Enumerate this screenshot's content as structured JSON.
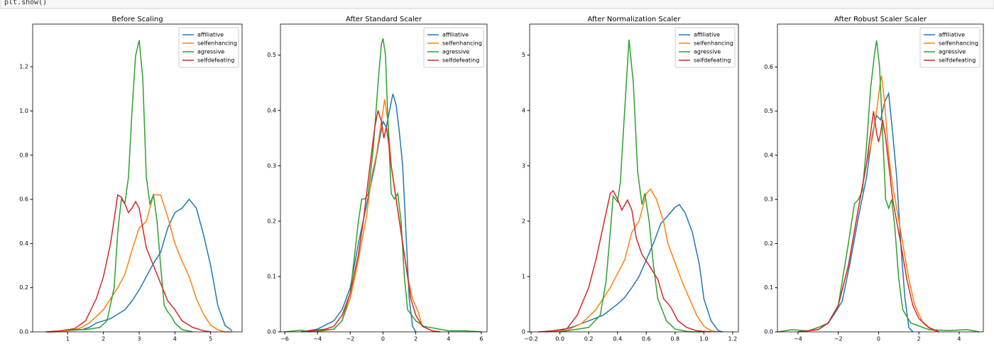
{
  "code": "plt.show()",
  "chart_data": [
    {
      "type": "line",
      "title": "Before Scaling",
      "legend": "upper right",
      "xlim": [
        0.02,
        5.88
      ],
      "ylim": [
        0,
        1.393
      ],
      "xticks": [
        1,
        2,
        3,
        4,
        5
      ],
      "yticks": [
        {
          "value": 0,
          "label": "0.0"
        },
        0.2,
        0.4,
        0.6,
        0.8,
        {
          "value": 1,
          "label": "1.0"
        },
        1.2
      ],
      "series": [
        {
          "name": "affiliative",
          "color": "#1f77b4",
          "x": [
            0.4,
            0.6,
            0.8,
            1.0,
            1.2,
            1.4,
            1.6,
            1.8,
            2.0,
            2.2,
            2.4,
            2.6,
            2.8,
            3.0,
            3.2,
            3.4,
            3.6,
            3.8,
            4.0,
            4.2,
            4.4,
            4.6,
            4.8,
            5.0,
            5.2,
            5.4,
            5.6
          ],
          "values": [
            0,
            0,
            0.002,
            0.005,
            0.008,
            0.01,
            0.02,
            0.04,
            0.05,
            0.06,
            0.08,
            0.1,
            0.14,
            0.19,
            0.25,
            0.31,
            0.36,
            0.47,
            0.54,
            0.56,
            0.6,
            0.56,
            0.44,
            0.3,
            0.12,
            0.03,
            0.005
          ]
        },
        {
          "name": "selfenhancing",
          "color": "#ff7f0e",
          "x": [
            0.4,
            0.6,
            0.8,
            1.0,
            1.2,
            1.4,
            1.6,
            1.8,
            2.0,
            2.2,
            2.4,
            2.6,
            2.8,
            3.0,
            3.2,
            3.4,
            3.6,
            3.8,
            4.0,
            4.2,
            4.4,
            4.6,
            4.8,
            5.0,
            5.2,
            5.4,
            5.6
          ],
          "values": [
            0,
            0,
            0.002,
            0.005,
            0.01,
            0.02,
            0.04,
            0.07,
            0.1,
            0.15,
            0.2,
            0.26,
            0.37,
            0.47,
            0.5,
            0.62,
            0.62,
            0.52,
            0.4,
            0.32,
            0.25,
            0.15,
            0.08,
            0.03,
            0.01,
            0,
            0
          ]
        },
        {
          "name": "agressive",
          "color": "#2ca02c",
          "x": [
            1.0,
            1.5,
            1.9,
            2.1,
            2.3,
            2.4,
            2.5,
            2.6,
            2.7,
            2.8,
            2.9,
            3.0,
            3.1,
            3.2,
            3.3,
            3.4,
            3.5,
            3.6,
            3.7,
            3.8,
            3.9,
            4.0,
            4.2,
            4.5
          ],
          "values": [
            0.01,
            0.01,
            0.02,
            0.05,
            0.2,
            0.45,
            0.6,
            0.58,
            0.7,
            1.0,
            1.25,
            1.32,
            1.15,
            0.7,
            0.58,
            0.62,
            0.5,
            0.3,
            0.12,
            0.09,
            0.07,
            0.04,
            0.01,
            0
          ]
        },
        {
          "name": "selfdefeating",
          "color": "#d62728",
          "x": [
            0.4,
            0.8,
            1.2,
            1.5,
            1.8,
            2.0,
            2.2,
            2.4,
            2.5,
            2.6,
            2.7,
            2.8,
            2.9,
            3.0,
            3.1,
            3.2,
            3.4,
            3.6,
            3.8,
            4.0,
            4.2,
            4.5,
            4.8,
            5.0
          ],
          "values": [
            0,
            0.005,
            0.015,
            0.05,
            0.15,
            0.25,
            0.4,
            0.62,
            0.61,
            0.58,
            0.54,
            0.56,
            0.59,
            0.56,
            0.47,
            0.38,
            0.3,
            0.22,
            0.14,
            0.1,
            0.05,
            0.02,
            0.005,
            0
          ]
        }
      ]
    },
    {
      "type": "line",
      "title": "After Standard Scaler",
      "legend": "upper right",
      "xlim": [
        -6.26,
        6.35
      ],
      "ylim": [
        0,
        0.556
      ],
      "xticks": [
        {
          "value": -6,
          "label": "−6"
        },
        {
          "value": -4,
          "label": "−4"
        },
        {
          "value": -2,
          "label": "−2"
        },
        0,
        2,
        4,
        6
      ],
      "yticks": [
        {
          "value": 0,
          "label": "0.0"
        },
        0.1,
        0.2,
        0.3,
        0.4,
        0.5
      ],
      "series": [
        {
          "name": "affiliative",
          "color": "#1f77b4",
          "x": [
            -5,
            -4,
            -3,
            -2.5,
            -2,
            -1.5,
            -1,
            -0.5,
            -0.2,
            0,
            0.2,
            0.4,
            0.6,
            0.8,
            1.0,
            1.2,
            1.4,
            1.6,
            1.8,
            2.0
          ],
          "values": [
            0,
            0.005,
            0.02,
            0.04,
            0.08,
            0.16,
            0.23,
            0.3,
            0.35,
            0.38,
            0.37,
            0.4,
            0.43,
            0.41,
            0.36,
            0.3,
            0.18,
            0.06,
            0.01,
            0
          ]
        },
        {
          "name": "selfenhancing",
          "color": "#ff7f0e",
          "x": [
            -4,
            -3,
            -2.5,
            -2,
            -1.5,
            -1,
            -0.7,
            -0.4,
            -0.2,
            0,
            0.1,
            0.3,
            0.5,
            0.7,
            0.9,
            1.2,
            1.5,
            1.8,
            2.1,
            2.4,
            3,
            3.5
          ],
          "values": [
            0,
            0.005,
            0.02,
            0.06,
            0.13,
            0.21,
            0.28,
            0.32,
            0.36,
            0.4,
            0.42,
            0.38,
            0.3,
            0.26,
            0.22,
            0.16,
            0.1,
            0.06,
            0.04,
            0.01,
            0.002,
            0
          ]
        },
        {
          "name": "agressive",
          "color": "#2ca02c",
          "x": [
            -6,
            -5,
            -4.5,
            -3,
            -2.5,
            -2,
            -1.5,
            -1.3,
            -1.1,
            -0.9,
            -0.6,
            -0.3,
            -0.1,
            0,
            0.15,
            0.3,
            0.5,
            0.7,
            0.9,
            1.1,
            1.3,
            1.5,
            2.0,
            2.5,
            4,
            5,
            6
          ],
          "values": [
            0,
            0.003,
            0,
            0.005,
            0.02,
            0.07,
            0.2,
            0.24,
            0.24,
            0.25,
            0.33,
            0.45,
            0.52,
            0.53,
            0.5,
            0.38,
            0.25,
            0.24,
            0.25,
            0.2,
            0.1,
            0.04,
            0.02,
            0.01,
            0.002,
            0.002,
            0
          ]
        },
        {
          "name": "selfdefeating",
          "color": "#d62728",
          "x": [
            -5,
            -3.5,
            -3,
            -2.5,
            -2,
            -1.5,
            -1.2,
            -0.8,
            -0.5,
            -0.3,
            -0.1,
            0.05,
            0.2,
            0.35,
            0.5,
            0.7,
            0.9,
            1.1,
            1.4,
            1.7,
            2.0,
            2.4,
            3,
            3.5
          ],
          "values": [
            0,
            0.005,
            0.01,
            0.03,
            0.07,
            0.14,
            0.2,
            0.3,
            0.37,
            0.4,
            0.38,
            0.35,
            0.37,
            0.34,
            0.3,
            0.26,
            0.22,
            0.18,
            0.12,
            0.06,
            0.03,
            0.01,
            0.002,
            0
          ]
        }
      ]
    },
    {
      "type": "line",
      "title": "After Normalization Scaler",
      "legend": "upper right",
      "xlim": [
        -0.21,
        1.24
      ],
      "ylim": [
        0,
        5.56
      ],
      "xticks": [
        {
          "value": -0.2,
          "label": "−0.2"
        },
        {
          "value": 0,
          "label": "0.0"
        },
        0.2,
        0.4,
        0.6,
        0.8,
        {
          "value": 1,
          "label": "1.0"
        },
        1.2
      ],
      "yticks": [
        0,
        1,
        2,
        3,
        4,
        5
      ],
      "series": [
        {
          "name": "affiliative",
          "color": "#1f77b4",
          "x": [
            -0.1,
            0.0,
            0.1,
            0.2,
            0.3,
            0.4,
            0.45,
            0.5,
            0.55,
            0.6,
            0.65,
            0.7,
            0.75,
            0.8,
            0.83,
            0.87,
            0.92,
            0.97,
            1.0,
            1.05,
            1.1,
            1.13
          ],
          "values": [
            0,
            0.02,
            0.1,
            0.2,
            0.3,
            0.5,
            0.62,
            0.8,
            1.0,
            1.3,
            1.6,
            1.95,
            2.1,
            2.25,
            2.3,
            2.15,
            1.8,
            1.2,
            0.6,
            0.2,
            0.02,
            0
          ]
        },
        {
          "name": "selfenhancing",
          "color": "#ff7f0e",
          "x": [
            -0.05,
            0.05,
            0.15,
            0.25,
            0.35,
            0.4,
            0.45,
            0.5,
            0.55,
            0.6,
            0.63,
            0.67,
            0.72,
            0.75,
            0.8,
            0.85,
            0.9,
            0.95,
            1.0,
            1.05,
            1.1
          ],
          "values": [
            0,
            0.03,
            0.15,
            0.4,
            0.8,
            1.05,
            1.3,
            1.8,
            2.0,
            2.5,
            2.58,
            2.4,
            2.0,
            1.6,
            1.25,
            0.9,
            0.6,
            0.3,
            0.1,
            0.02,
            0
          ]
        },
        {
          "name": "agressive",
          "color": "#2ca02c",
          "x": [
            0.0,
            0.1,
            0.2,
            0.28,
            0.32,
            0.35,
            0.37,
            0.4,
            0.42,
            0.45,
            0.48,
            0.51,
            0.54,
            0.57,
            0.59,
            0.62,
            0.65,
            0.68,
            0.71,
            0.74,
            0.8,
            0.9,
            1.0
          ],
          "values": [
            0,
            0.04,
            0.08,
            0.3,
            0.9,
            1.8,
            2.45,
            2.35,
            2.7,
            4.0,
            5.28,
            4.5,
            2.9,
            2.3,
            2.5,
            2.0,
            1.2,
            0.6,
            0.4,
            0.2,
            0.05,
            0,
            0
          ]
        },
        {
          "name": "selfdefeating",
          "color": "#d62728",
          "x": [
            -0.15,
            -0.05,
            0.05,
            0.12,
            0.2,
            0.25,
            0.3,
            0.35,
            0.37,
            0.4,
            0.43,
            0.47,
            0.5,
            0.53,
            0.57,
            0.62,
            0.68,
            0.72,
            0.77,
            0.82,
            0.88,
            0.95,
            1.05
          ],
          "values": [
            0,
            0.02,
            0.06,
            0.3,
            0.8,
            1.3,
            1.9,
            2.5,
            2.55,
            2.4,
            2.2,
            2.38,
            2.2,
            1.7,
            1.4,
            1.2,
            0.95,
            0.6,
            0.45,
            0.2,
            0.08,
            0.02,
            0
          ]
        }
      ]
    },
    {
      "type": "line",
      "title": "After Robust Scaler Scaler",
      "legend": "upper right",
      "xlim": [
        -5.02,
        5.2
      ],
      "ylim": [
        0,
        0.697
      ],
      "xticks": [
        {
          "value": -4,
          "label": "−4"
        },
        {
          "value": -2,
          "label": "−2"
        },
        0,
        2,
        4
      ],
      "yticks": [
        {
          "value": 0,
          "label": "0.0"
        },
        0.1,
        0.2,
        0.3,
        0.4,
        0.5,
        0.6
      ],
      "series": [
        {
          "name": "affiliative",
          "color": "#1f77b4",
          "x": [
            -4,
            -3,
            -2.5,
            -2.2,
            -1.8,
            -1.4,
            -1,
            -0.6,
            -0.3,
            -0.1,
            0.1,
            0.3,
            0.5,
            0.7,
            0.9,
            1.1,
            1.3,
            1.5,
            1.7
          ],
          "values": [
            0,
            0.005,
            0.02,
            0.04,
            0.07,
            0.16,
            0.26,
            0.35,
            0.45,
            0.49,
            0.48,
            0.52,
            0.54,
            0.45,
            0.35,
            0.2,
            0.08,
            0.01,
            0
          ]
        },
        {
          "name": "selfenhancing",
          "color": "#ff7f0e",
          "x": [
            -4,
            -3,
            -2.5,
            -2,
            -1.5,
            -1,
            -0.6,
            -0.3,
            -0.1,
            0.1,
            0.15,
            0.3,
            0.5,
            0.7,
            0.9,
            1.2,
            1.5,
            1.8,
            2.2,
            2.6,
            3
          ],
          "values": [
            0,
            0.005,
            0.02,
            0.06,
            0.15,
            0.28,
            0.38,
            0.44,
            0.5,
            0.57,
            0.58,
            0.52,
            0.4,
            0.33,
            0.28,
            0.2,
            0.12,
            0.06,
            0.02,
            0.005,
            0
          ]
        },
        {
          "name": "agressive",
          "color": "#2ca02c",
          "x": [
            -5,
            -4.3,
            -3.5,
            -3,
            -2.5,
            -2,
            -1.5,
            -1.2,
            -1.0,
            -0.8,
            -0.6,
            -0.4,
            -0.2,
            -0.1,
            0.05,
            0.2,
            0.35,
            0.5,
            0.65,
            0.8,
            1.0,
            1.2,
            1.6,
            2.5,
            3.5,
            4.4,
            5
          ],
          "values": [
            0,
            0.005,
            0.002,
            0.01,
            0.02,
            0.06,
            0.2,
            0.29,
            0.3,
            0.32,
            0.42,
            0.55,
            0.63,
            0.66,
            0.6,
            0.45,
            0.3,
            0.28,
            0.3,
            0.24,
            0.12,
            0.05,
            0.02,
            0.005,
            0.003,
            0.005,
            0
          ]
        },
        {
          "name": "selfdefeating",
          "color": "#d62728",
          "x": [
            -4,
            -3,
            -2.5,
            -2,
            -1.5,
            -1,
            -0.6,
            -0.4,
            -0.25,
            -0.1,
            0,
            0.1,
            0.2,
            0.35,
            0.5,
            0.7,
            0.9,
            1.1,
            1.4,
            1.7,
            2,
            2.5,
            3
          ],
          "values": [
            0,
            0.005,
            0.02,
            0.06,
            0.15,
            0.28,
            0.38,
            0.45,
            0.5,
            0.45,
            0.43,
            0.45,
            0.48,
            0.44,
            0.38,
            0.3,
            0.25,
            0.2,
            0.12,
            0.06,
            0.03,
            0.01,
            0
          ]
        }
      ]
    }
  ]
}
